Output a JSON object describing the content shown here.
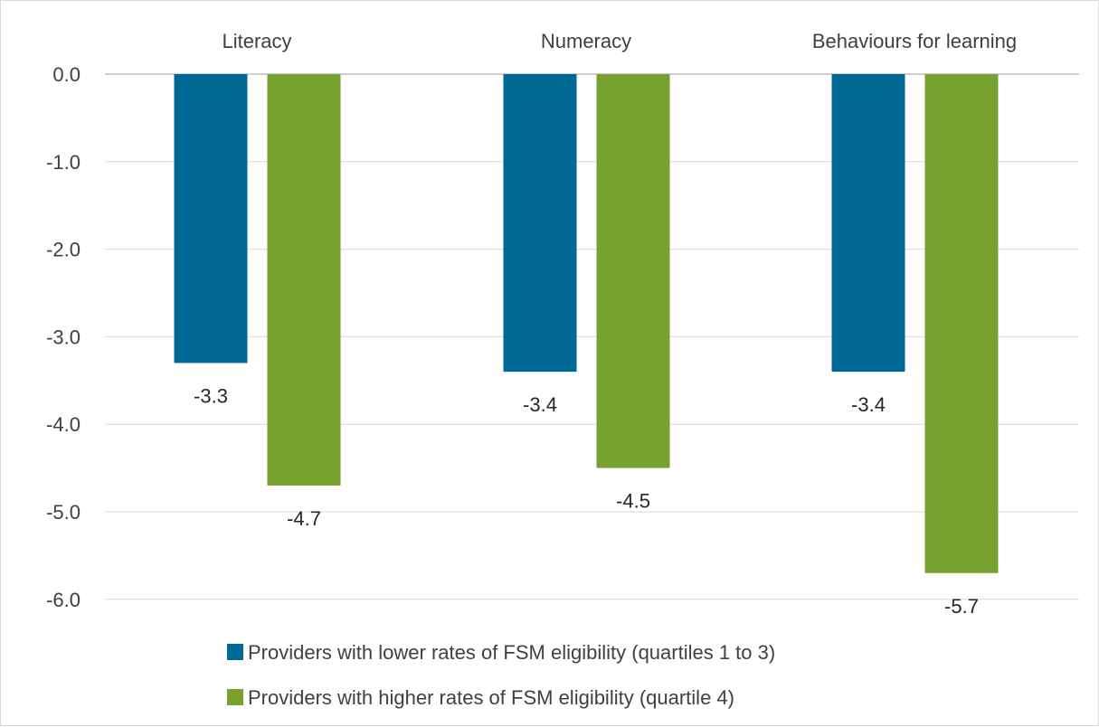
{
  "chart_data": {
    "type": "bar",
    "categories": [
      "Literacy",
      "Numeracy",
      "Behaviours for learning"
    ],
    "series": [
      {
        "name": "Providers with lower rates of FSM eligibility (quartiles 1 to 3)",
        "values": [
          -3.3,
          -3.4,
          -3.4
        ],
        "labels": [
          "-3.3",
          "-3.4",
          "-3.4"
        ],
        "color": "#006895"
      },
      {
        "name": "Providers with higher rates of FSM eligibility (quartile 4)",
        "values": [
          -4.7,
          -4.5,
          -5.7
        ],
        "labels": [
          "-4.7",
          "-4.5",
          "-5.7"
        ],
        "color": "#77a22f"
      }
    ],
    "yticks": [
      0,
      -1,
      -2,
      -3,
      -4,
      -5,
      -6
    ],
    "ytick_labels": [
      "0.0",
      "-1.0",
      "-2.0",
      "-3.0",
      "-4.0",
      "-5.0",
      "-6.0"
    ],
    "ylim": [
      -6,
      0
    ],
    "category_labels_position": "top",
    "grid": true,
    "legend": "bottom"
  }
}
